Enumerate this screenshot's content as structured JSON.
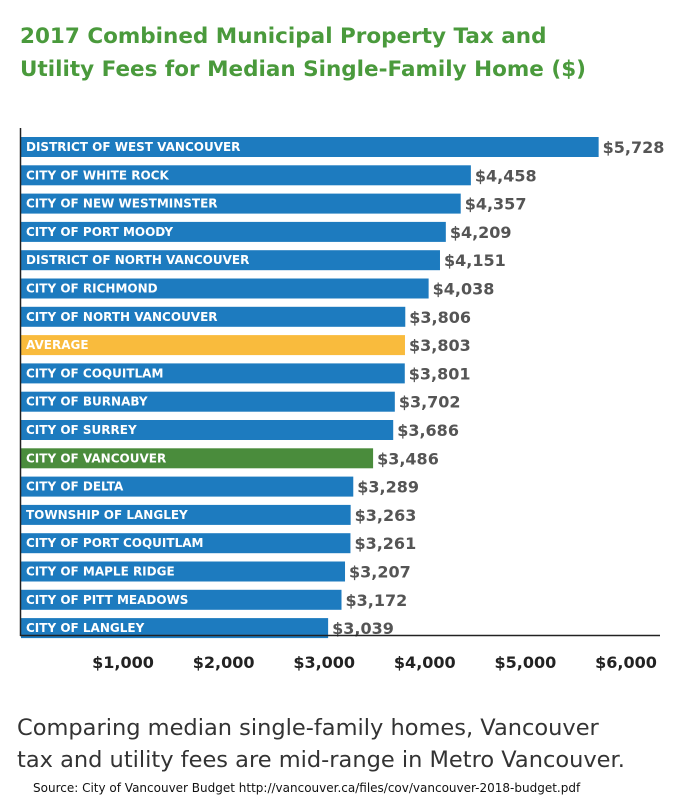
{
  "title_lines": [
    "2017 Combined Municipal Property Tax and",
    "Utility Fees for Median Single-Family Home ($)"
  ],
  "caption_lines": [
    "Comparing median single-family homes, Vancouver",
    "tax and utility fees are mid-range in Metro Vancouver."
  ],
  "source": "Source: City of Vancouver Budget  http://vancouver.ca/files/cov/vancouver-2018-budget.pdf",
  "colors": {
    "title": "#4a9a3c",
    "default_bar": "#1d7bbf",
    "average_bar": "#f9bb3d",
    "vancouver_bar": "#4a8c3c",
    "value_label": "#555555"
  },
  "chart_data": {
    "type": "bar",
    "orientation": "horizontal",
    "categories": [
      "DISTRICT OF WEST VANCOUVER",
      "CITY OF WHITE ROCK",
      "CITY OF NEW WESTMINSTER",
      "CITY OF PORT MOODY",
      "DISTRICT OF NORTH VANCOUVER",
      "CITY OF RICHMOND",
      "CITY OF NORTH VANCOUVER",
      "AVERAGE",
      "CITY OF COQUITLAM",
      "CITY OF BURNABY",
      "CITY OF SURREY",
      "CITY OF VANCOUVER",
      "CITY OF DELTA",
      "TOWNSHIP OF LANGLEY",
      "CITY OF PORT COQUITLAM",
      "CITY OF MAPLE RIDGE",
      "CITY OF PITT MEADOWS",
      "CITY OF LANGLEY"
    ],
    "values": [
      5728,
      4458,
      4357,
      4209,
      4151,
      4038,
      3806,
      3803,
      3801,
      3702,
      3686,
      3486,
      3289,
      3263,
      3261,
      3207,
      3172,
      3039
    ],
    "value_labels": [
      "$5,728",
      "$4,458",
      "$4,357",
      "$4,209",
      "$4,151",
      "$4,038",
      "$3,806",
      "$3,803",
      "$3,801",
      "$3,702",
      "$3,686",
      "$3,486",
      "$3,289",
      "$3,263",
      "$3,261",
      "$3,207",
      "$3,172",
      "$3,039"
    ],
    "highlight": {
      "AVERAGE": "#f9bb3d",
      "CITY OF VANCOUVER": "#4a8c3c"
    },
    "xticks": [
      1000,
      2000,
      3000,
      4000,
      5000,
      6000
    ],
    "xtick_labels": [
      "$1,000",
      "$2,000",
      "$3,000",
      "$4,000",
      "$5,000",
      "$6,000"
    ],
    "xlim": [
      0,
      6300
    ],
    "grid": false,
    "legend": "none"
  }
}
